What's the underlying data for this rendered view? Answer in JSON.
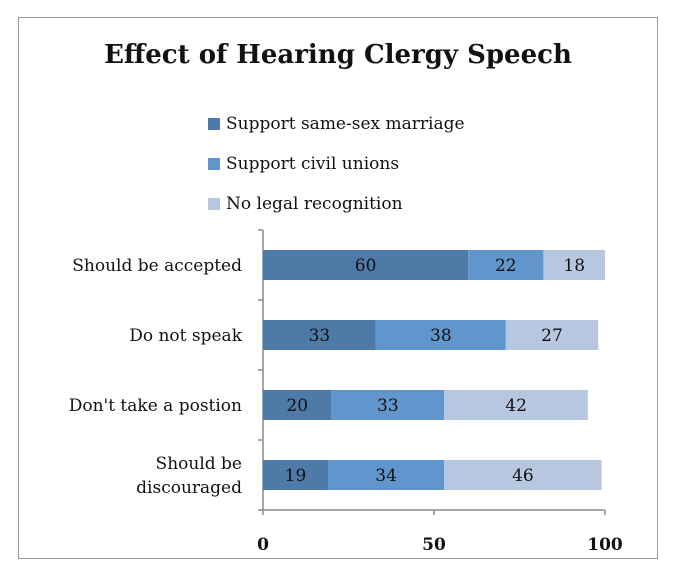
{
  "chart_data": {
    "type": "bar",
    "orientation": "horizontal",
    "stacked": true,
    "title": "Effect of Hearing Clergy Speech",
    "categories": [
      "Should be accepted",
      "Do not speak",
      "Don't take a postion",
      "Should be discouraged"
    ],
    "category_lines": [
      [
        "Should be accepted"
      ],
      [
        "Do not speak"
      ],
      [
        "Don't take a postion"
      ],
      [
        "Should be",
        "discouraged"
      ]
    ],
    "series": [
      {
        "name": "Support same-sex marriage",
        "color": "#4e7aa7",
        "values": [
          60,
          33,
          20,
          19
        ]
      },
      {
        "name": "Support civil unions",
        "color": "#6196cc",
        "values": [
          22,
          38,
          33,
          34
        ]
      },
      {
        "name": "No legal recognition",
        "color": "#b8c7e0",
        "values": [
          18,
          27,
          42,
          46
        ]
      }
    ],
    "xlim": [
      0,
      100
    ],
    "xticks": [
      "0",
      "50",
      "100"
    ],
    "grid": false,
    "legend_position": "top-left"
  }
}
